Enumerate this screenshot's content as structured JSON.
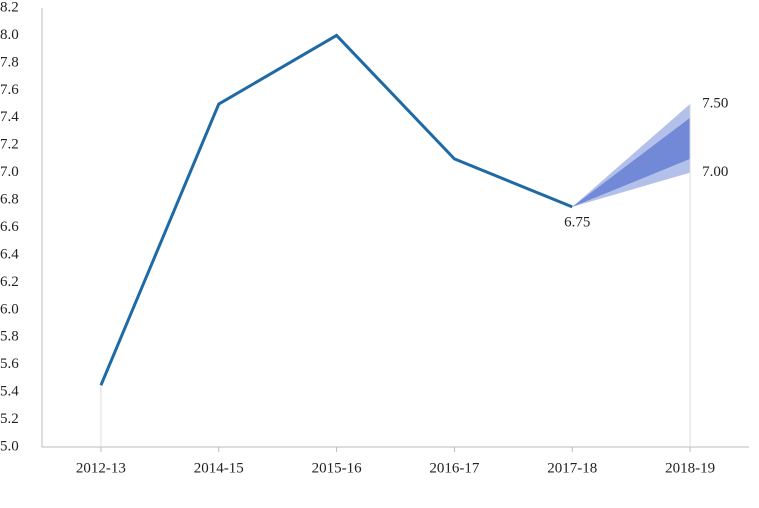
{
  "chart_data": {
    "type": "line",
    "categories": [
      "2012-13",
      "2014-15",
      "2015-16",
      "2016-17",
      "2017-18",
      "2018-19"
    ],
    "series": [
      {
        "color": "#1f6aa5",
        "values": [
          5.45,
          7.5,
          8.0,
          7.1,
          6.75,
          null
        ],
        "value_labels": [
          null,
          null,
          null,
          null,
          "6.75",
          null
        ]
      }
    ],
    "bands": [
      {
        "color": "#b3c1ea",
        "upper": [
          null,
          null,
          null,
          null,
          6.75,
          7.5
        ],
        "lower": [
          null,
          null,
          null,
          null,
          6.75,
          7.0
        ],
        "upper_labels": [
          null,
          null,
          null,
          null,
          null,
          "7.50"
        ],
        "lower_labels": [
          null,
          null,
          null,
          null,
          null,
          "7.00"
        ]
      },
      {
        "color": "#7189d6",
        "upper": [
          null,
          null,
          null,
          null,
          6.75,
          7.4
        ],
        "lower": [
          null,
          null,
          null,
          null,
          6.75,
          7.1
        ]
      }
    ],
    "ylim": [
      5.0,
      8.2
    ],
    "yticks": [
      {
        "value": 5,
        "label": "5.0"
      },
      5.2,
      5.4,
      5.6,
      5.8,
      {
        "value": 6,
        "label": "6.0"
      },
      6.2,
      6.4,
      6.6,
      6.8,
      {
        "value": 7,
        "label": "7.0"
      },
      7.2,
      7.4,
      7.6,
      7.8,
      {
        "value": 8,
        "label": "8.0"
      },
      8.2
    ],
    "grid": false
  }
}
